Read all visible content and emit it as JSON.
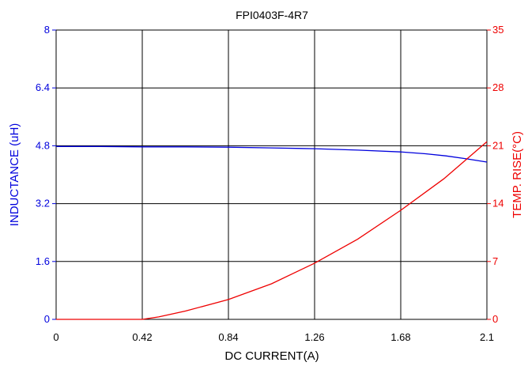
{
  "chart_data": {
    "type": "line",
    "title": "FPI0403F-4R7",
    "xlabel": "DC CURRENT(A)",
    "ylabel_left": "INDUCTANCE (uH)",
    "ylabel_right": "TEMP. RISE(°C)",
    "xlim": [
      0,
      2.1
    ],
    "ylim_left": [
      0,
      8
    ],
    "ylim_right": [
      0,
      35
    ],
    "x_ticks": [
      "0",
      "0.42",
      "0.84",
      "1.26",
      "1.68",
      "2.1"
    ],
    "y_left_ticks": [
      "0",
      "1.6",
      "3.2",
      "4.8",
      "6.4",
      "8"
    ],
    "y_right_ticks": [
      "0",
      "7",
      "14",
      "21",
      "28",
      "35"
    ],
    "grid": true,
    "colors": {
      "inductance": "#0000dd",
      "temp_rise": "#ee0000",
      "grid": "#000000"
    },
    "series": [
      {
        "axis": "left",
        "color": "#0000dd",
        "x": [
          0,
          0.2,
          0.42,
          0.63,
          0.84,
          1.05,
          1.26,
          1.47,
          1.68,
          1.8,
          1.9,
          2.0,
          2.1
        ],
        "values": [
          4.78,
          4.78,
          4.77,
          4.77,
          4.76,
          4.74,
          4.72,
          4.68,
          4.63,
          4.58,
          4.52,
          4.44,
          4.35
        ]
      },
      {
        "axis": "right",
        "color": "#ee0000",
        "x": [
          0,
          0.42,
          0.5,
          0.63,
          0.84,
          1.05,
          1.26,
          1.47,
          1.68,
          1.89,
          2.1
        ],
        "values": [
          0,
          0,
          0.3,
          1.0,
          2.4,
          4.3,
          6.8,
          9.7,
          13.2,
          17.0,
          21.5
        ]
      }
    ]
  }
}
